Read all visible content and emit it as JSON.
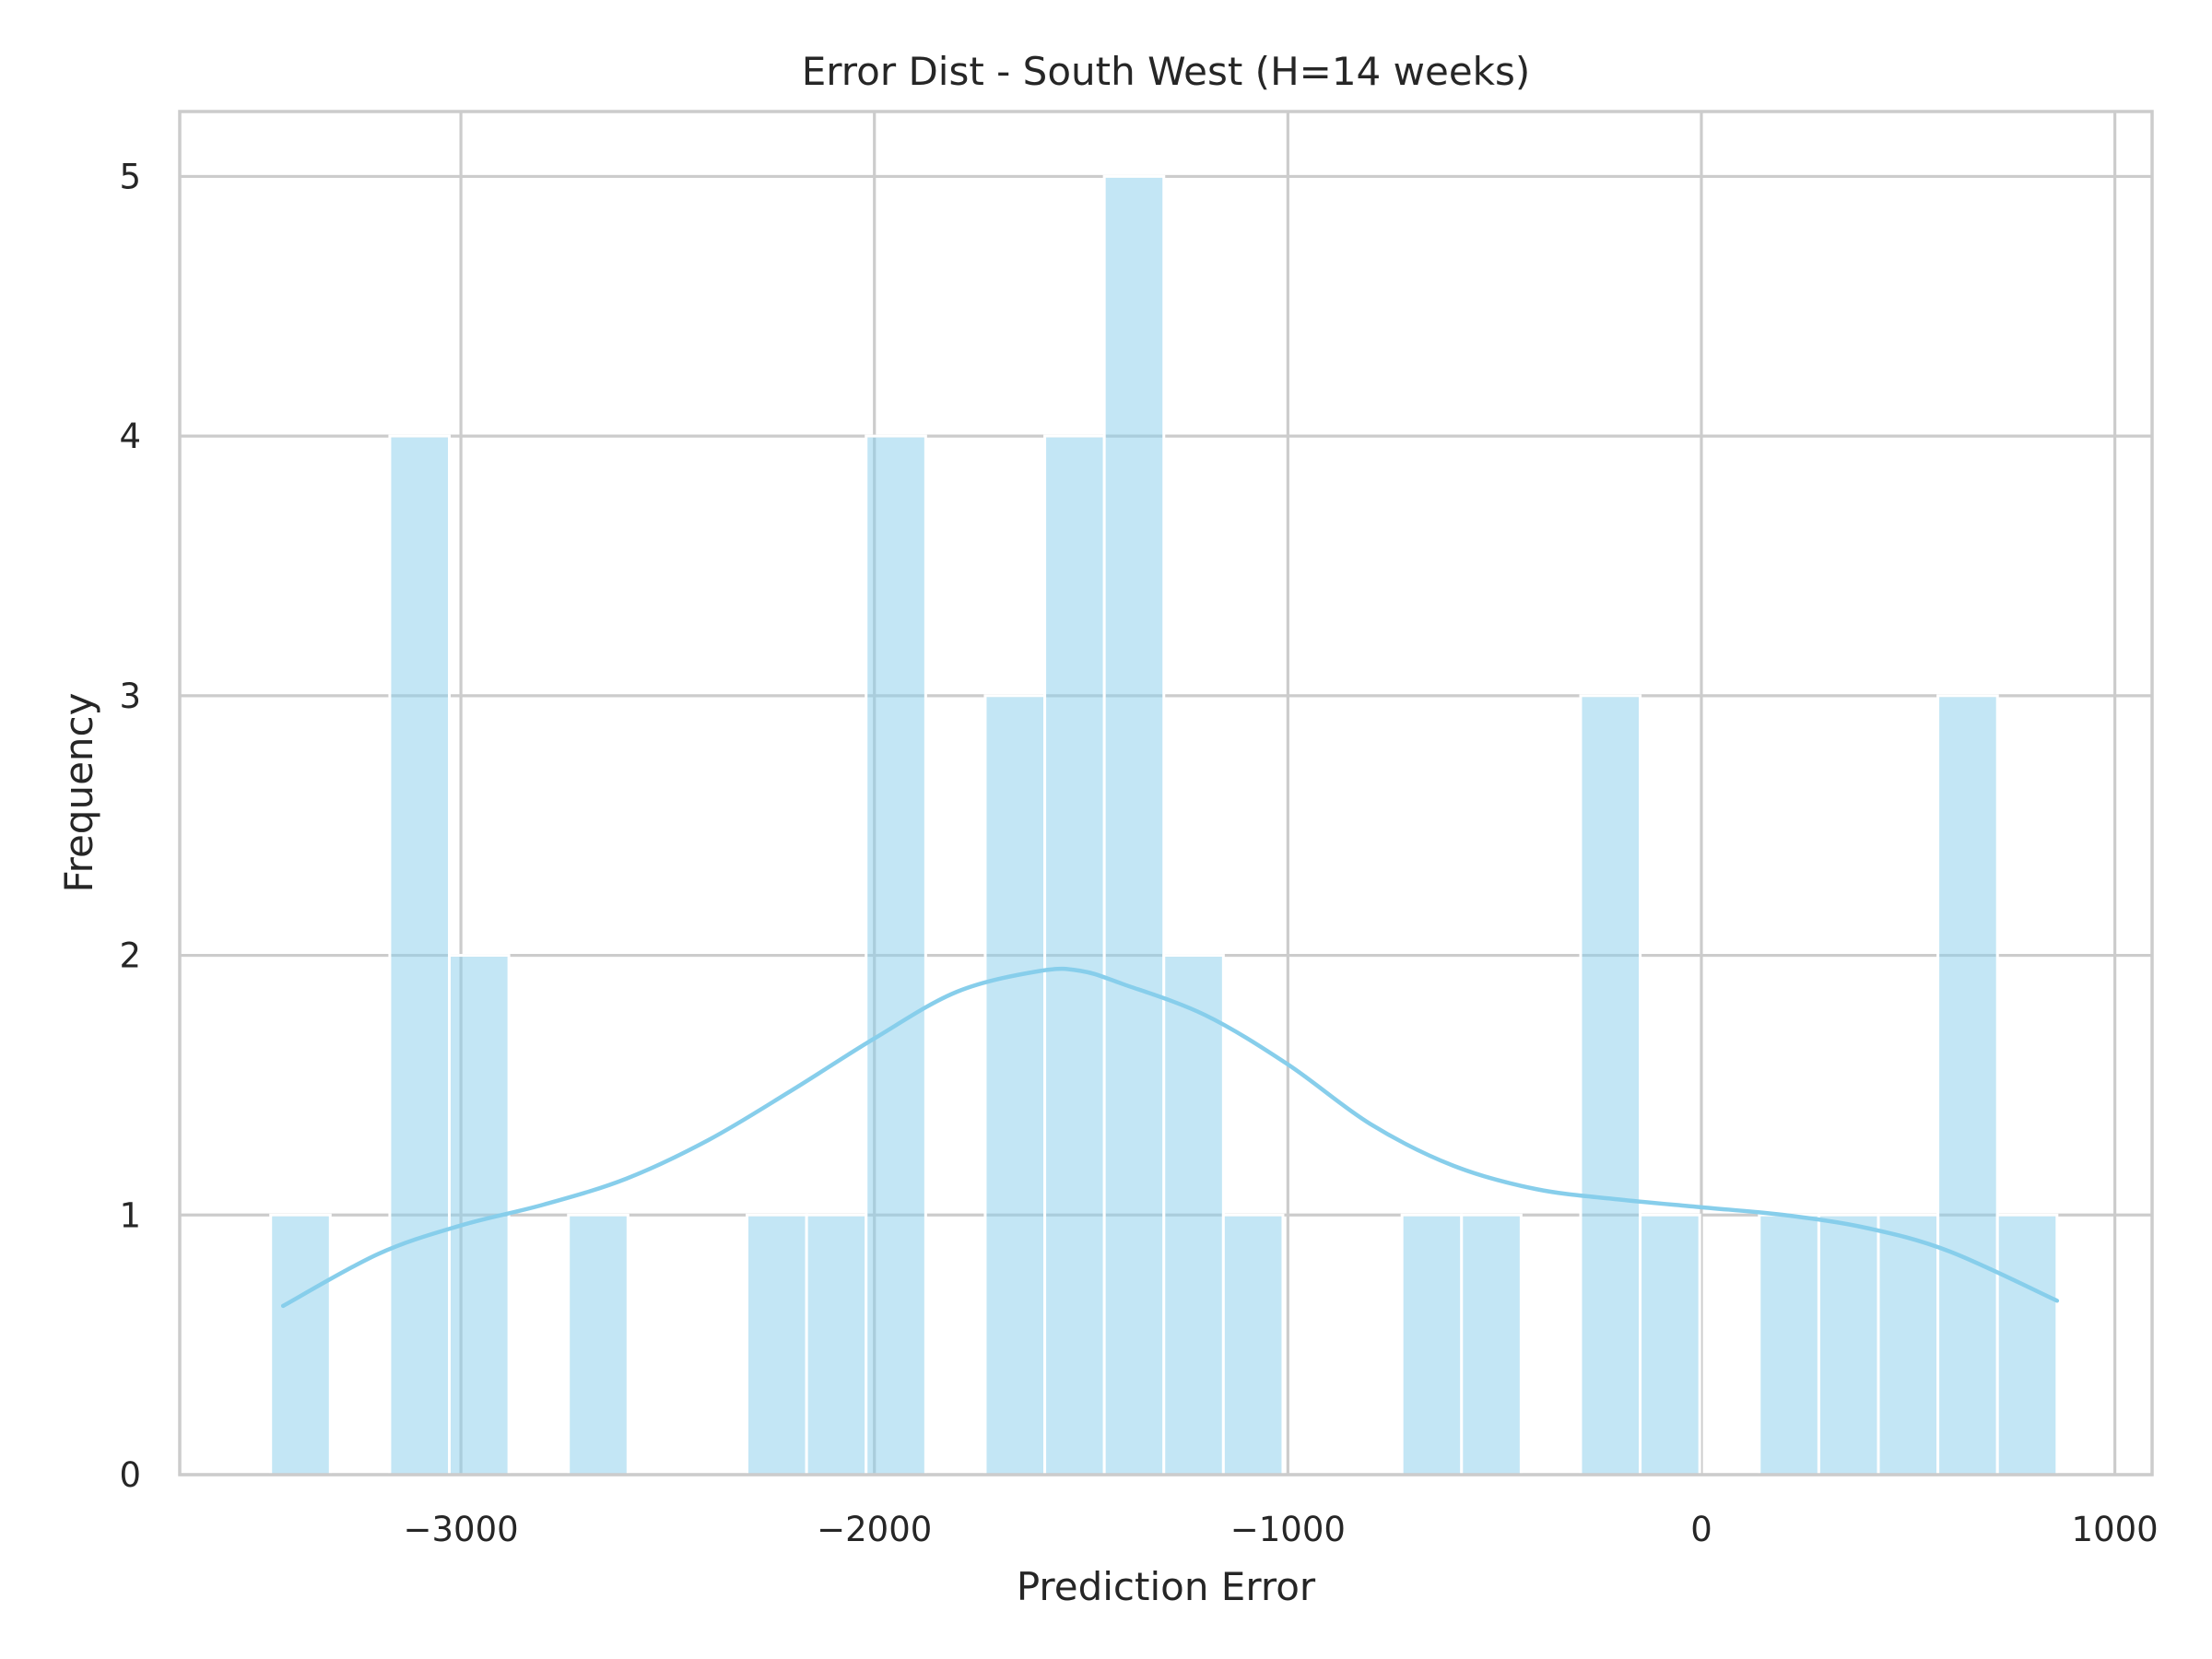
{
  "chart_data": {
    "type": "bar",
    "title": "Error Dist - South West (H=14 weeks)",
    "xlabel": "Prediction Error",
    "ylabel": "Frequency",
    "xlim": [
      -3680,
      1090
    ],
    "ylim": [
      0,
      5.25
    ],
    "xticks": [
      {
        "value": -3000,
        "label": "−3000"
      },
      {
        "value": -2000,
        "label": "−2000"
      },
      {
        "value": -1000,
        "label": "−1000"
      },
      {
        "value": 0,
        "label": "0"
      },
      {
        "value": 1000,
        "label": "1000"
      }
    ],
    "yticks": [
      {
        "value": 0,
        "label": "0"
      },
      {
        "value": 1,
        "label": "1"
      },
      {
        "value": 2,
        "label": "2"
      },
      {
        "value": 3,
        "label": "3"
      },
      {
        "value": 4,
        "label": "4"
      },
      {
        "value": 5,
        "label": "5"
      }
    ],
    "grid": true,
    "bar_color": "#87ceeb",
    "bins": [
      {
        "x0": -3460,
        "x1": -3316,
        "count": 1
      },
      {
        "x0": -3316,
        "x1": -3172,
        "count": 0
      },
      {
        "x0": -3172,
        "x1": -3028,
        "count": 4
      },
      {
        "x0": -3028,
        "x1": -2884,
        "count": 2
      },
      {
        "x0": -2884,
        "x1": -2740,
        "count": 0
      },
      {
        "x0": -2740,
        "x1": -2596,
        "count": 1
      },
      {
        "x0": -2596,
        "x1": -2452,
        "count": 0
      },
      {
        "x0": -2452,
        "x1": -2308,
        "count": 0
      },
      {
        "x0": -2308,
        "x1": -2164,
        "count": 1
      },
      {
        "x0": -2164,
        "x1": -2020,
        "count": 1
      },
      {
        "x0": -2020,
        "x1": -1876,
        "count": 4
      },
      {
        "x0": -1876,
        "x1": -1732,
        "count": 0
      },
      {
        "x0": -1732,
        "x1": -1588,
        "count": 3
      },
      {
        "x0": -1588,
        "x1": -1444,
        "count": 4
      },
      {
        "x0": -1444,
        "x1": -1300,
        "count": 5
      },
      {
        "x0": -1300,
        "x1": -1156,
        "count": 2
      },
      {
        "x0": -1156,
        "x1": -1012,
        "count": 1
      },
      {
        "x0": -1012,
        "x1": -868,
        "count": 0
      },
      {
        "x0": -868,
        "x1": -724,
        "count": 0
      },
      {
        "x0": -724,
        "x1": -580,
        "count": 1
      },
      {
        "x0": -580,
        "x1": -436,
        "count": 1
      },
      {
        "x0": -436,
        "x1": -292,
        "count": 0
      },
      {
        "x0": -292,
        "x1": -148,
        "count": 3
      },
      {
        "x0": -148,
        "x1": -4,
        "count": 1
      },
      {
        "x0": -4,
        "x1": 140,
        "count": 0
      },
      {
        "x0": 140,
        "x1": 284,
        "count": 1
      },
      {
        "x0": 284,
        "x1": 428,
        "count": 1
      },
      {
        "x0": 428,
        "x1": 572,
        "count": 1
      },
      {
        "x0": 572,
        "x1": 716,
        "count": 3
      },
      {
        "x0": 716,
        "x1": 860,
        "count": 1
      }
    ],
    "kde": {
      "color": "#87ceeb",
      "x": [
        -3430,
        -3200,
        -3000,
        -2800,
        -2600,
        -2400,
        -2200,
        -2000,
        -1800,
        -1600,
        -1500,
        -1400,
        -1200,
        -1000,
        -800,
        -600,
        -400,
        -200,
        0,
        200,
        400,
        600,
        860
      ],
      "y": [
        0.65,
        0.85,
        0.96,
        1.04,
        1.14,
        1.29,
        1.48,
        1.68,
        1.86,
        1.94,
        1.94,
        1.89,
        1.77,
        1.58,
        1.35,
        1.19,
        1.1,
        1.06,
        1.03,
        1.0,
        0.95,
        0.86,
        0.67
      ]
    }
  }
}
